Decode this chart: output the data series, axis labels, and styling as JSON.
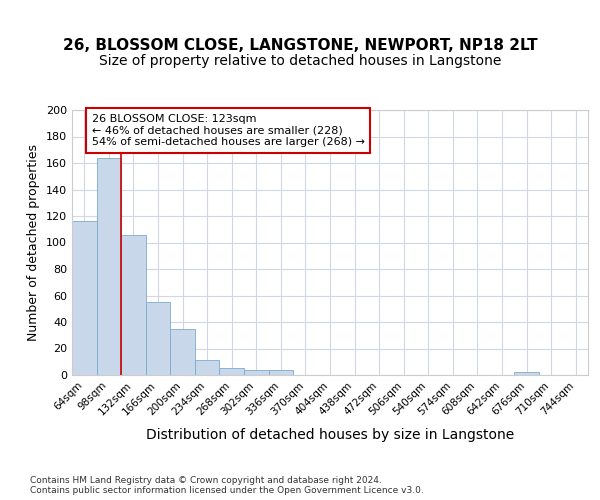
{
  "title1": "26, BLOSSOM CLOSE, LANGSTONE, NEWPORT, NP18 2LT",
  "title2": "Size of property relative to detached houses in Langstone",
  "xlabel": "Distribution of detached houses by size in Langstone",
  "ylabel": "Number of detached properties",
  "footnote": "Contains HM Land Registry data © Crown copyright and database right 2024.\nContains public sector information licensed under the Open Government Licence v3.0.",
  "bar_labels": [
    "64sqm",
    "98sqm",
    "132sqm",
    "166sqm",
    "200sqm",
    "234sqm",
    "268sqm",
    "302sqm",
    "336sqm",
    "370sqm",
    "404sqm",
    "438sqm",
    "472sqm",
    "506sqm",
    "540sqm",
    "574sqm",
    "608sqm",
    "642sqm",
    "676sqm",
    "710sqm",
    "744sqm"
  ],
  "bar_values": [
    116,
    164,
    106,
    55,
    35,
    11,
    5,
    4,
    4,
    0,
    0,
    0,
    0,
    0,
    0,
    0,
    0,
    0,
    2,
    0,
    0
  ],
  "bar_color": "#c8d8ea",
  "bar_edge_color": "#7aaad0",
  "vline_color": "#cc0000",
  "vline_pos": 1.5,
  "annotation_text": "26 BLOSSOM CLOSE: 123sqm\n← 46% of detached houses are smaller (228)\n54% of semi-detached houses are larger (268) →",
  "ylim": [
    0,
    200
  ],
  "yticks": [
    0,
    20,
    40,
    60,
    80,
    100,
    120,
    140,
    160,
    180,
    200
  ],
  "bg_color": "#ffffff",
  "plot_bg": "#ffffff",
  "grid_color": "#d0d8e8",
  "title1_fontsize": 11,
  "title2_fontsize": 10,
  "ylabel_fontsize": 9,
  "xlabel_fontsize": 10
}
